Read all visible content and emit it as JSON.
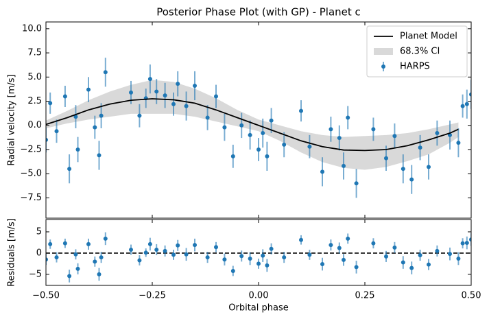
{
  "chart_data": [
    {
      "type": "errorbar",
      "title": "Posterior Phase Plot (with GP) - Planet c",
      "ylabel": "Radial velocity [m/s]",
      "xlim": [
        -0.5,
        0.5
      ],
      "xticks": [
        -0.5,
        -0.25,
        0,
        0.25,
        0.5
      ],
      "ylim": [
        -9.6,
        10.7
      ],
      "yticks": [
        {
          "value": -7.5,
          "label": "−7.5"
        },
        {
          "value": -5,
          "label": "−5.0"
        },
        {
          "value": -2.5,
          "label": "−2.5"
        },
        {
          "value": 0,
          "label": "0.0"
        },
        2.5,
        {
          "value": 5,
          "label": "5.0"
        },
        7.5,
        {
          "value": 10,
          "label": "10.0"
        }
      ],
      "legend": "upper right",
      "series": [
        {
          "name": "Planet Model",
          "type": "line",
          "color": "#000000",
          "x": [
            -0.5,
            -0.45,
            -0.4,
            -0.35,
            -0.3,
            -0.25,
            -0.2,
            -0.15,
            -0.1,
            -0.05,
            0,
            0.05,
            0.1,
            0.15,
            0.2,
            0.25,
            0.3,
            0.35,
            0.4,
            0.45,
            0.47
          ],
          "values": [
            0.1,
            0.8,
            1.6,
            2.2,
            2.6,
            2.75,
            2.65,
            2.3,
            1.6,
            0.8,
            0,
            -0.8,
            -1.6,
            -2.2,
            -2.55,
            -2.6,
            -2.5,
            -2.1,
            -1.5,
            -0.8,
            -0.4
          ]
        },
        {
          "name": "68.3% CI",
          "type": "band",
          "color": "#d9d9d9",
          "x": [
            -0.5,
            -0.45,
            -0.4,
            -0.35,
            -0.3,
            -0.25,
            -0.2,
            -0.15,
            -0.1,
            -0.05,
            0,
            0.05,
            0.1,
            0.15,
            0.2,
            0.25,
            0.3,
            0.35,
            0.4,
            0.45,
            0.47
          ],
          "lower": [
            -0.3,
            0.2,
            0.6,
            0.9,
            1.2,
            1.2,
            1.2,
            0.9,
            0.4,
            -0.1,
            -0.6,
            -1.6,
            -2.8,
            -3.8,
            -4.4,
            -4.6,
            -4.3,
            -3.7,
            -3.0,
            -1.8,
            -1.2
          ],
          "upper": [
            0.5,
            1.5,
            2.6,
            3.5,
            4.2,
            4.7,
            4.5,
            3.8,
            2.8,
            1.6,
            0.6,
            0,
            -0.6,
            -1.0,
            -1.2,
            -1.1,
            -1.0,
            -0.8,
            -0.4,
            0.1,
            0.3
          ]
        },
        {
          "name": "HARPS",
          "type": "errorbar",
          "color": "#1f77b4",
          "x": [
            -0.5,
            -0.49,
            -0.475,
            -0.455,
            -0.445,
            -0.43,
            -0.425,
            -0.4,
            -0.385,
            -0.375,
            -0.37,
            -0.36,
            -0.3,
            -0.28,
            -0.265,
            -0.255,
            -0.24,
            -0.22,
            -0.2,
            -0.19,
            -0.17,
            -0.15,
            -0.12,
            -0.1,
            -0.08,
            -0.06,
            -0.04,
            -0.02,
            0,
            0.01,
            0.02,
            0.03,
            0.06,
            0.1,
            0.12,
            0.15,
            0.17,
            0.19,
            0.2,
            0.21,
            0.23,
            0.27,
            0.3,
            0.32,
            0.34,
            0.36,
            0.38,
            0.4,
            0.42,
            0.45,
            0.47,
            0.48,
            0.49,
            0.5
          ],
          "values": [
            -1.5,
            2.3,
            -0.6,
            3.0,
            -4.5,
            0.9,
            -2.5,
            3.7,
            -0.2,
            -3.1,
            1.0,
            5.5,
            3.4,
            1.0,
            2.8,
            4.8,
            3.5,
            3.1,
            2.2,
            4.3,
            2.0,
            4.1,
            0.8,
            3.0,
            -0.2,
            -3.2,
            0,
            -1.0,
            -2.5,
            -0.8,
            -3.2,
            0.5,
            -2.0,
            1.5,
            -2.2,
            -4.8,
            -0.4,
            -1.3,
            -4.2,
            0.8,
            -6.0,
            -0.4,
            -3.4,
            -1.1,
            -4.5,
            -5.6,
            -2.3,
            -4.3,
            -0.8,
            -1.0,
            -1.8,
            2.0,
            2.2,
            3.2
          ],
          "errors": [
            1.3,
            1.1,
            1.2,
            1.1,
            1.5,
            1.2,
            1.3,
            1.3,
            1.2,
            1.5,
            1.3,
            1.5,
            1.2,
            1.2,
            1.0,
            1.5,
            1.3,
            1.3,
            1.2,
            1.3,
            1.5,
            1.5,
            1.3,
            1.2,
            1.4,
            1.2,
            1.3,
            1.5,
            1.2,
            1.5,
            1.5,
            1.3,
            1.3,
            1.1,
            1.2,
            1.5,
            1.3,
            1.3,
            1.4,
            1.2,
            1.5,
            1.2,
            1.3,
            1.3,
            1.5,
            1.5,
            1.3,
            1.3,
            1.3,
            1.5,
            1.5,
            1.2,
            1.5,
            1.5
          ]
        }
      ]
    },
    {
      "type": "errorbar",
      "ylabel": "Residuals [m/s]",
      "xlabel": "Orbital phase",
      "xlim": [
        -0.5,
        0.5
      ],
      "xticks": [
        {
          "value": -0.5,
          "label": "−0.50"
        },
        {
          "value": -0.25,
          "label": "−0.25"
        },
        {
          "value": 0,
          "label": "0.00"
        },
        {
          "value": 0.25,
          "label": "0.25"
        },
        {
          "value": 0.5,
          "label": "0.50"
        }
      ],
      "ylim": [
        -7.6,
        7.9
      ],
      "yticks": [
        {
          "value": -5,
          "label": "−5"
        },
        0,
        5
      ],
      "hline": 0,
      "series": [
        {
          "type": "errorbar",
          "color": "#1f77b4",
          "x": [
            -0.5,
            -0.49,
            -0.475,
            -0.455,
            -0.445,
            -0.43,
            -0.425,
            -0.4,
            -0.385,
            -0.375,
            -0.37,
            -0.36,
            -0.3,
            -0.28,
            -0.265,
            -0.255,
            -0.24,
            -0.22,
            -0.2,
            -0.19,
            -0.17,
            -0.15,
            -0.12,
            -0.1,
            -0.08,
            -0.06,
            -0.04,
            -0.02,
            0,
            0.01,
            0.02,
            0.03,
            0.06,
            0.1,
            0.12,
            0.15,
            0.17,
            0.19,
            0.2,
            0.21,
            0.23,
            0.27,
            0.3,
            0.32,
            0.34,
            0.36,
            0.38,
            0.4,
            0.42,
            0.45,
            0.47,
            0.48,
            0.49,
            0.5
          ],
          "values": [
            -1.5,
            2.1,
            -1.0,
            2.3,
            -5.4,
            -0.3,
            -3.7,
            2.1,
            -2.0,
            -5.0,
            -1.0,
            3.4,
            0.8,
            -1.7,
            0.1,
            2.1,
            0.8,
            0.5,
            -0.4,
            1.8,
            -0.3,
            1.9,
            -1.0,
            1.4,
            -1.5,
            -4.2,
            -0.7,
            -1.3,
            -2.5,
            -0.6,
            -2.9,
            1.0,
            -1.0,
            3.1,
            -0.4,
            -2.6,
            1.9,
            1.2,
            -1.6,
            3.4,
            -3.3,
            2.3,
            -0.8,
            1.3,
            -2.2,
            -3.5,
            -0.5,
            -2.7,
            0.5,
            -0.2,
            -1.3,
            2.3,
            2.4,
            3.2
          ],
          "errors": [
            1.3,
            1.1,
            1.2,
            1.1,
            1.5,
            1.2,
            1.3,
            1.3,
            1.2,
            1.5,
            1.3,
            1.5,
            1.2,
            1.2,
            1.0,
            1.5,
            1.3,
            1.3,
            1.2,
            1.3,
            1.5,
            1.5,
            1.3,
            1.2,
            1.4,
            1.2,
            1.3,
            1.5,
            1.2,
            1.5,
            1.5,
            1.3,
            1.3,
            1.1,
            1.2,
            1.5,
            1.3,
            1.3,
            1.4,
            1.2,
            1.5,
            1.2,
            1.3,
            1.3,
            1.5,
            1.5,
            1.3,
            1.3,
            1.3,
            1.5,
            1.5,
            1.2,
            1.5,
            1.5
          ]
        }
      ]
    }
  ]
}
